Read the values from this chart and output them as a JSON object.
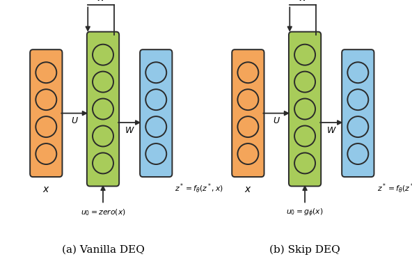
{
  "bg_color": "#ffffff",
  "orange_face": "#F4A55A",
  "green_face": "#A8CC5A",
  "blue_face": "#92C8E8",
  "circle_face_orange": "#F4A55A",
  "circle_face_green": "#A8CC5A",
  "circle_face_blue": "#92C8E8",
  "box_edge": "#2a2a2a",
  "arrow_color": "#2a2a2a",
  "title_a": "(a) Vanilla DEQ",
  "title_b": "(b) Skip DEQ",
  "label_x": "$x$",
  "label_u0_a": "$u_0 = zero(x)$",
  "label_u0_b": "$u_0 = g_\\phi(x)$",
  "label_eq": "$z^* = f_\\theta(z^*, x)$",
  "label_U": "$U$",
  "label_W_side": "$W$",
  "label_W_top": "$W$",
  "n_orange": 4,
  "n_green": 5,
  "n_blue": 4
}
